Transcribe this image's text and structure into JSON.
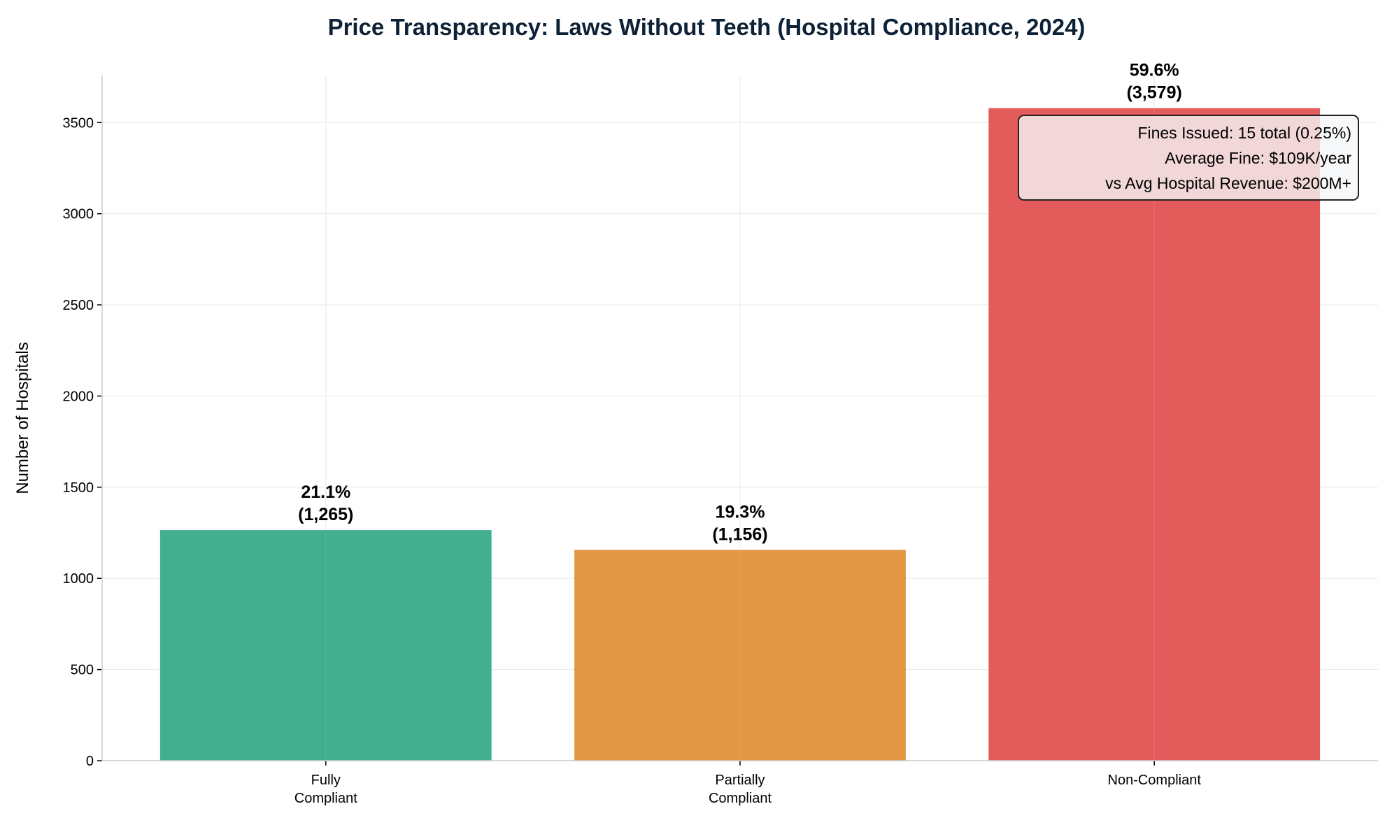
{
  "chart_data": {
    "type": "bar",
    "title": "Price Transparency: Laws Without Teeth (Hospital Compliance, 2024)",
    "xlabel": "",
    "ylabel": "Number of Hospitals",
    "categories": [
      "Fully\nCompliant",
      "Partially\nCompliant",
      "Non-Compliant"
    ],
    "values": [
      1265,
      1156,
      3579
    ],
    "bar_labels": [
      [
        "21.1%",
        "(1,265)"
      ],
      [
        "19.3%",
        "(1,156)"
      ],
      [
        "59.6%",
        "(3,579)"
      ]
    ],
    "colors": [
      "#38ab89",
      "#e0913a",
      "#e35252"
    ],
    "ylim": [
      0,
      3758
    ],
    "yticks": [
      0,
      500,
      1000,
      1500,
      2000,
      2500,
      3000,
      3500
    ],
    "grid": true,
    "annotation": [
      "Fines Issued: 15 total (0.25%)",
      "Average Fine: $109K/year",
      "vs Avg Hospital Revenue: $200M+"
    ],
    "annotation_placement": "top-right",
    "title_color": "#0d2236"
  }
}
